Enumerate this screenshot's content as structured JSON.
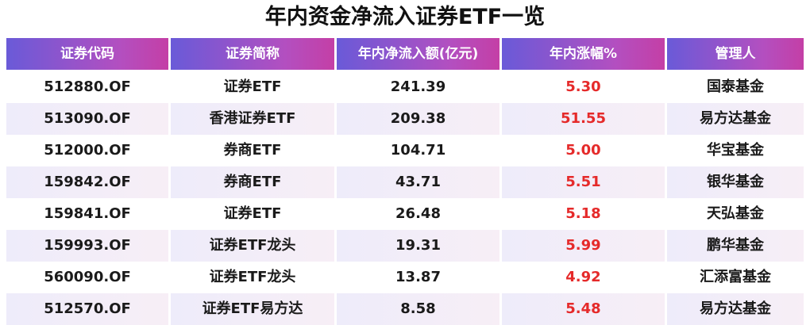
{
  "header": {
    "title": "年内资金净流入证券ETF一览"
  },
  "table": {
    "columns": [
      "证券代码",
      "证券简称",
      "年内净流入额(亿元)",
      "年内涨幅%",
      "管理人"
    ],
    "rows": [
      [
        "512880.OF",
        "证券ETF",
        "241.39",
        "5.30",
        "国泰基金"
      ],
      [
        "513090.OF",
        "香港证券ETF",
        "209.38",
        "51.55",
        "易方达基金"
      ],
      [
        "512000.OF",
        "券商ETF",
        "104.71",
        "5.00",
        "华宝基金"
      ],
      [
        "159842.OF",
        "券商ETF",
        "43.71",
        "5.51",
        "银华基金"
      ],
      [
        "159841.OF",
        "证券ETF",
        "26.48",
        "5.18",
        "天弘基金"
      ],
      [
        "159993.OF",
        "证券ETF龙头",
        "19.31",
        "5.99",
        "鹏华基金"
      ],
      [
        "560090.OF",
        "证券ETF龙头",
        "13.87",
        "4.92",
        "汇添富基金"
      ],
      [
        "512570.OF",
        "证券ETF易方达",
        "8.58",
        "5.48",
        "易方达基金"
      ]
    ]
  }
}
